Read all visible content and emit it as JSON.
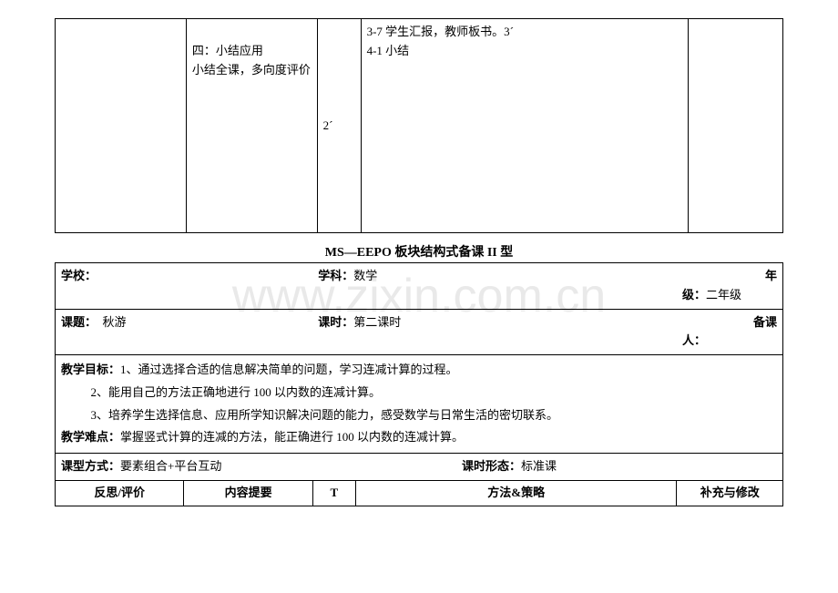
{
  "watermark": "www.zixin.com.cn",
  "topTable": {
    "col2_line1": "四：小结应用",
    "col2_line2": "小结全课，多向度评价",
    "col3": "2´",
    "col4_line1": "3-7 学生汇报，教师板书。3´",
    "col4_line2": "4-1 小结"
  },
  "sectionTitle": "MS—EEPO 板块结构式备课 II 型",
  "form": {
    "schoolLabel": "学校：",
    "subjectLabel": "学科：",
    "subject": "数学",
    "gradeLabel": "年级：",
    "grade": "二年级",
    "topicLabel": "课题：",
    "topic": "秋游",
    "periodLabel": "课时：",
    "period": "第二课时",
    "preparerLabel": "备课人：",
    "goalsLabel": "教学目标：",
    "goal1": "1、通过选择合适的信息解决简单的问题，学习连减计算的过程。",
    "goal2": "2、能用自己的方法正确地进行 100 以内数的连减计算。",
    "goal3": "3、培养学生选择信息、应用所学知识解决问题的能力，感受数学与日常生活的密切联系。",
    "difficultyLabel": "教学难点：",
    "difficulty": "掌握竖式计算的连减的方法，能正确进行 100 以内数的连减计算。",
    "typeLabel": "课型方式：",
    "type": "要素组合+平台互动",
    "formLabel": "课时形态：",
    "formValue": "标准课",
    "headers": {
      "h1": "反思/评价",
      "h2": "内容提要",
      "h3": "T",
      "h4": "方法&策略",
      "h5": "补充与修改"
    }
  }
}
